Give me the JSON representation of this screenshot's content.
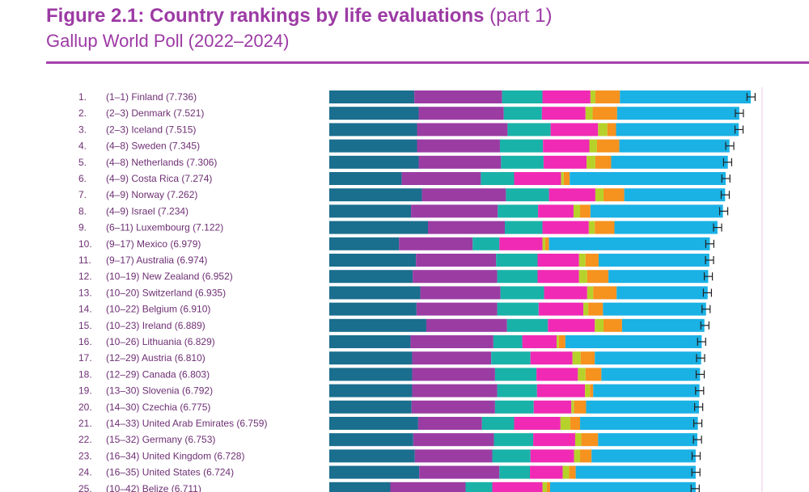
{
  "title": {
    "bold": "Figure 2.1: Country rankings by life evaluations",
    "light": "(part 1)"
  },
  "subtitle": "Gallup World Poll (2022–2024)",
  "colors": {
    "title": "#9c3aa4",
    "label": "#6e2f74",
    "segments": [
      "#1a6e8e",
      "#9b3ca3",
      "#19b2a8",
      "#f02ab4",
      "#b6d22a",
      "#f6921e",
      "#1ab1e5"
    ]
  },
  "chart_data": {
    "type": "bar",
    "orientation": "horizontal",
    "stacked": true,
    "error_bars": true,
    "axis": "hidden",
    "rows": [
      {
        "rank": "1.",
        "range": "(1–1)",
        "country": "Finland",
        "score": "(7.736)",
        "value": 7.736,
        "segments": [
          1.56,
          1.61,
          0.74,
          0.88,
          0.09,
          0.45,
          2.4
        ]
      },
      {
        "rank": "2.",
        "range": "(2–3)",
        "country": "Denmark",
        "score": "(7.521)",
        "value": 7.521,
        "segments": [
          1.64,
          1.56,
          0.7,
          0.8,
          0.13,
          0.45,
          2.24
        ]
      },
      {
        "rank": "3.",
        "range": "(2–3)",
        "country": "Iceland",
        "score": "(7.515)",
        "value": 7.515,
        "segments": [
          1.61,
          1.66,
          0.79,
          0.87,
          0.17,
          0.16,
          2.25
        ]
      },
      {
        "rank": "4.",
        "range": "(4–8)",
        "country": "Sweden",
        "score": "(7.345)",
        "value": 7.345,
        "segments": [
          1.61,
          1.52,
          0.79,
          0.85,
          0.14,
          0.41,
          2.02
        ]
      },
      {
        "rank": "5.",
        "range": "(4–8)",
        "country": "Netherlands",
        "score": "(7.306)",
        "value": 7.306,
        "segments": [
          1.64,
          1.51,
          0.78,
          0.79,
          0.16,
          0.29,
          2.14
        ]
      },
      {
        "rank": "6.",
        "range": "(4–9)",
        "country": "Costa Rica",
        "score": "(7.274)",
        "value": 7.274,
        "segments": [
          1.33,
          1.45,
          0.61,
          0.86,
          0.05,
          0.11,
          2.86
        ]
      },
      {
        "rank": "7.",
        "range": "(4–9)",
        "country": "Norway",
        "score": "(7.262)",
        "value": 7.262,
        "segments": [
          1.7,
          1.54,
          0.79,
          0.85,
          0.15,
          0.38,
          1.85
        ]
      },
      {
        "rank": "8.",
        "range": "(4–9)",
        "country": "Israel",
        "score": "(7.234)",
        "value": 7.234,
        "segments": [
          1.5,
          1.59,
          0.74,
          0.65,
          0.12,
          0.19,
          2.43
        ]
      },
      {
        "rank": "9.",
        "range": "(6–11)",
        "country": "Luxembourg",
        "score": "(7.122)",
        "value": 7.122,
        "segments": [
          1.81,
          1.41,
          0.69,
          0.85,
          0.11,
          0.36,
          1.89
        ]
      },
      {
        "rank": "10.",
        "range": "(9–17)",
        "country": "Mexico",
        "score": "(6.979)",
        "value": 6.979,
        "segments": [
          1.28,
          1.35,
          0.49,
          0.79,
          0.05,
          0.07,
          2.95
        ]
      },
      {
        "rank": "11.",
        "range": "(9–17)",
        "country": "Australia",
        "score": "(6.974)",
        "value": 6.974,
        "segments": [
          1.59,
          1.47,
          0.76,
          0.76,
          0.12,
          0.24,
          2.03
        ]
      },
      {
        "rank": "12.",
        "range": "(10–19)",
        "country": "New Zealand",
        "score": "(6.952)",
        "value": 6.952,
        "segments": [
          1.53,
          1.55,
          0.74,
          0.76,
          0.15,
          0.39,
          1.83
        ]
      },
      {
        "rank": "13.",
        "range": "(10–20)",
        "country": "Switzerland",
        "score": "(6.935)",
        "value": 6.935,
        "segments": [
          1.67,
          1.47,
          0.8,
          0.79,
          0.11,
          0.43,
          1.67
        ]
      },
      {
        "rank": "14.",
        "range": "(10–22)",
        "country": "Belgium",
        "score": "(6.910)",
        "value": 6.91,
        "segments": [
          1.6,
          1.48,
          0.76,
          0.82,
          0.09,
          0.27,
          1.89
        ]
      },
      {
        "rank": "15.",
        "range": "(10–23)",
        "country": "Ireland",
        "score": "(6.889)",
        "value": 6.889,
        "segments": [
          1.78,
          1.48,
          0.75,
          0.86,
          0.16,
          0.34,
          1.51
        ]
      },
      {
        "rank": "16.",
        "range": "(10–26)",
        "country": "Lithuania",
        "score": "(6.829)",
        "value": 6.829,
        "segments": [
          1.49,
          1.52,
          0.53,
          0.63,
          0.04,
          0.12,
          2.5
        ]
      },
      {
        "rank": "17.",
        "range": "(12–29)",
        "country": "Austria",
        "score": "(6.810)",
        "value": 6.81,
        "segments": [
          1.52,
          1.45,
          0.72,
          0.77,
          0.15,
          0.26,
          1.95
        ]
      },
      {
        "rank": "18.",
        "range": "(12–29)",
        "country": "Canada",
        "score": "(6.803)",
        "value": 6.803,
        "segments": [
          1.52,
          1.52,
          0.76,
          0.76,
          0.14,
          0.29,
          1.81
        ]
      },
      {
        "rank": "19.",
        "range": "(13–30)",
        "country": "Slovenia",
        "score": "(6.792)",
        "value": 6.792,
        "segments": [
          1.52,
          1.56,
          0.73,
          0.88,
          0.09,
          0.06,
          1.95
        ]
      },
      {
        "rank": "20.",
        "range": "(14–30)",
        "country": "Czechia",
        "score": "(6.775)",
        "value": 6.775,
        "segments": [
          1.51,
          1.53,
          0.71,
          0.69,
          0.05,
          0.22,
          2.07
        ]
      },
      {
        "rank": "21.",
        "range": "(14–33)",
        "country": "United Arab Emirates",
        "score": "(6.759)",
        "value": 6.759,
        "segments": [
          1.63,
          1.17,
          0.59,
          0.85,
          0.18,
          0.18,
          2.16
        ]
      },
      {
        "rank": "22.",
        "range": "(15–32)",
        "country": "Germany",
        "score": "(6.753)",
        "value": 6.753,
        "segments": [
          1.54,
          1.48,
          0.72,
          0.77,
          0.11,
          0.31,
          1.82
        ]
      },
      {
        "rank": "23.",
        "range": "(16–34)",
        "country": "United Kingdom",
        "score": "(6.728)",
        "value": 6.728,
        "segments": [
          1.57,
          1.42,
          0.7,
          0.8,
          0.11,
          0.21,
          1.91
        ]
      },
      {
        "rank": "24.",
        "range": "(16–35)",
        "country": "United States",
        "score": "(6.724)",
        "value": 6.724,
        "segments": [
          1.65,
          1.47,
          0.56,
          0.6,
          0.12,
          0.12,
          2.2
        ]
      },
      {
        "rank": "25.",
        "range": "(10–42)",
        "country": "Belize",
        "score": "(6.711)",
        "value": 6.711,
        "segments": [
          1.12,
          1.38,
          0.49,
          0.92,
          0.08,
          0.06,
          2.67
        ]
      }
    ]
  }
}
